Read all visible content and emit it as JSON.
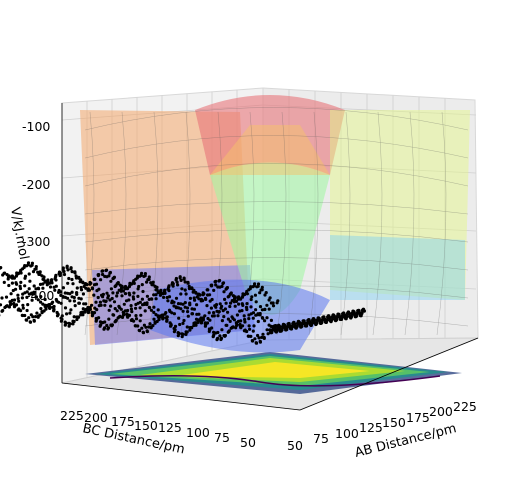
{
  "chart_data": {
    "type": "surface",
    "title": "",
    "xlabel": "AB Distance/pm",
    "ylabel": "BC Distance/pm",
    "zlabel": "V/kJ.mol",
    "x_ticks": [
      "50",
      "75",
      "100",
      "125",
      "150",
      "175",
      "200",
      "225"
    ],
    "y_ticks": [
      "225",
      "200",
      "175",
      "150",
      "125",
      "100",
      "75",
      "50"
    ],
    "z_ticks": [
      "-100",
      "-200",
      "-300",
      "-400"
    ],
    "xlim": [
      50,
      240
    ],
    "ylim": [
      50,
      240
    ],
    "zlim": [
      -460,
      -80
    ],
    "surface_colormap": "jet",
    "contour_colormap": "viridis",
    "grid": true,
    "trajectory_series": "points",
    "colors": {
      "trajectory": "#000000",
      "pane": "#f2f2f2",
      "grid": "#d0d0d0"
    }
  }
}
